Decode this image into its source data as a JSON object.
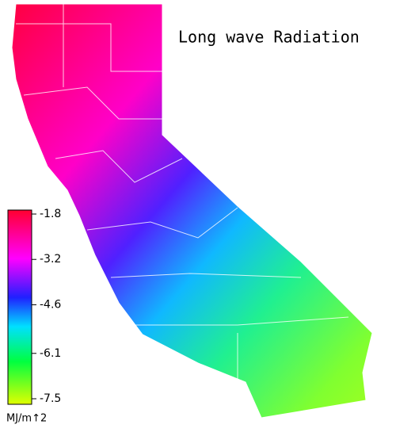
{
  "title": "Long wave Radiation",
  "colorbar": {
    "ticks": [
      -1.8,
      -3.2,
      -4.6,
      -6.1,
      -7.5
    ],
    "unit": "MJ/m↑2"
  }
}
